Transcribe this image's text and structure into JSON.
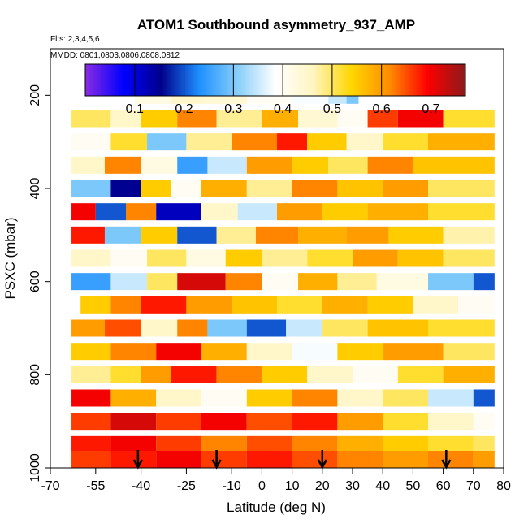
{
  "chart_data": {
    "type": "heatmap",
    "title": "ATOM1 Southbound asymmetry_937_AMP",
    "subtitle_flights": "Flts: 2,3,4,5,6",
    "subtitle_dates": "MMDD: 0801,0803,0806,0808,0812",
    "xlabel": "Latitude (deg N)",
    "ylabel": "PSXC (mbar)",
    "xlim": [
      -70,
      80
    ],
    "ylim": [
      1000,
      100
    ],
    "x_ticks": [
      -70,
      -55,
      -40,
      -25,
      -10,
      0,
      10,
      20,
      30,
      40,
      50,
      60,
      70,
      80
    ],
    "x_tick_labels": [
      "-70",
      "-55",
      "-40",
      "-25",
      "-10",
      "0",
      "10",
      "20",
      "30",
      "40",
      "50",
      "60",
      "70",
      "80"
    ],
    "y_ticks": [
      200,
      400,
      600,
      800,
      1000
    ],
    "y_tick_labels": [
      "200",
      "400",
      "600",
      "800",
      "1000"
    ],
    "colorbar": {
      "range": [
        0.0,
        0.77
      ],
      "ticks": [
        0.1,
        0.2,
        0.3,
        0.4,
        0.5,
        0.6,
        0.7
      ],
      "tick_labels": [
        "0.1",
        "0.2",
        "0.3",
        "0.4",
        "0.5",
        "0.6",
        "0.7"
      ],
      "colors": [
        "#8a2be2",
        "#0000ff",
        "#00008b",
        "#1e90ff",
        "#87cefa",
        "#ffffff",
        "#fff5c0",
        "#ffd700",
        "#ff8c00",
        "#ff0000",
        "#8b1a1a"
      ]
    },
    "markers": {
      "type": "arrow",
      "latitudes": [
        -41,
        -15,
        20,
        61
      ]
    },
    "layers": [
      {
        "p": 200,
        "lat_min": -42,
        "lat_max": 32,
        "cells": [
          {
            "a": -42,
            "b": -30,
            "v": 0.42
          },
          {
            "a": -30,
            "b": -20,
            "v": 0.45
          },
          {
            "a": -20,
            "b": -5,
            "v": 0.44
          },
          {
            "a": -5,
            "b": 10,
            "v": 0.4
          },
          {
            "a": 10,
            "b": 22,
            "v": 0.38
          },
          {
            "a": 22,
            "b": 28,
            "v": 0.35
          },
          {
            "a": 28,
            "b": 32,
            "v": 0.3
          }
        ]
      },
      {
        "p": 250,
        "lat_min": -63,
        "lat_max": 77,
        "cells": [
          {
            "a": -63,
            "b": -50,
            "v": 0.5
          },
          {
            "a": -50,
            "b": -40,
            "v": 0.45
          },
          {
            "a": -40,
            "b": -28,
            "v": 0.55
          },
          {
            "a": -28,
            "b": -15,
            "v": 0.62
          },
          {
            "a": -15,
            "b": 0,
            "v": 0.48
          },
          {
            "a": 0,
            "b": 12,
            "v": 0.58
          },
          {
            "a": 12,
            "b": 25,
            "v": 0.44
          },
          {
            "a": 25,
            "b": 35,
            "v": 0.4
          },
          {
            "a": 35,
            "b": 45,
            "v": 0.66
          },
          {
            "a": 45,
            "b": 60,
            "v": 0.7
          },
          {
            "a": 60,
            "b": 77,
            "v": 0.52
          }
        ]
      },
      {
        "p": 300,
        "lat_min": -63,
        "lat_max": 77,
        "cells": [
          {
            "a": -63,
            "b": -50,
            "v": 0.4
          },
          {
            "a": -50,
            "b": -38,
            "v": 0.52
          },
          {
            "a": -38,
            "b": -25,
            "v": 0.3
          },
          {
            "a": -25,
            "b": -10,
            "v": 0.48
          },
          {
            "a": -10,
            "b": 5,
            "v": 0.62
          },
          {
            "a": 5,
            "b": 15,
            "v": 0.68
          },
          {
            "a": 15,
            "b": 28,
            "v": 0.55
          },
          {
            "a": 28,
            "b": 40,
            "v": 0.45
          },
          {
            "a": 40,
            "b": 55,
            "v": 0.52
          },
          {
            "a": 55,
            "b": 77,
            "v": 0.58
          }
        ]
      },
      {
        "p": 350,
        "lat_min": -63,
        "lat_max": 77,
        "cells": [
          {
            "a": -63,
            "b": -52,
            "v": 0.45
          },
          {
            "a": -52,
            "b": -40,
            "v": 0.62
          },
          {
            "a": -40,
            "b": -28,
            "v": 0.42
          },
          {
            "a": -28,
            "b": -18,
            "v": 0.25
          },
          {
            "a": -18,
            "b": -5,
            "v": 0.35
          },
          {
            "a": -5,
            "b": 10,
            "v": 0.6
          },
          {
            "a": 10,
            "b": 22,
            "v": 0.55
          },
          {
            "a": 22,
            "b": 35,
            "v": 0.5
          },
          {
            "a": 35,
            "b": 50,
            "v": 0.62
          },
          {
            "a": 50,
            "b": 77,
            "v": 0.56
          }
        ]
      },
      {
        "p": 400,
        "lat_min": -63,
        "lat_max": 77,
        "cells": [
          {
            "a": -63,
            "b": -50,
            "v": 0.3
          },
          {
            "a": -50,
            "b": -40,
            "v": 0.15
          },
          {
            "a": -40,
            "b": -30,
            "v": 0.55
          },
          {
            "a": -30,
            "b": -20,
            "v": 0.4
          },
          {
            "a": -20,
            "b": -5,
            "v": 0.58
          },
          {
            "a": -5,
            "b": 10,
            "v": 0.48
          },
          {
            "a": 10,
            "b": 25,
            "v": 0.62
          },
          {
            "a": 25,
            "b": 40,
            "v": 0.56
          },
          {
            "a": 40,
            "b": 55,
            "v": 0.6
          },
          {
            "a": 55,
            "b": 77,
            "v": 0.5
          }
        ]
      },
      {
        "p": 450,
        "lat_min": -63,
        "lat_max": 77,
        "cells": [
          {
            "a": -63,
            "b": -55,
            "v": 0.7
          },
          {
            "a": -55,
            "b": -45,
            "v": 0.2
          },
          {
            "a": -45,
            "b": -35,
            "v": 0.62
          },
          {
            "a": -35,
            "b": -20,
            "v": 0.12
          },
          {
            "a": -20,
            "b": -8,
            "v": 0.45
          },
          {
            "a": -8,
            "b": 5,
            "v": 0.35
          },
          {
            "a": 5,
            "b": 20,
            "v": 0.6
          },
          {
            "a": 20,
            "b": 35,
            "v": 0.55
          },
          {
            "a": 35,
            "b": 55,
            "v": 0.58
          },
          {
            "a": 55,
            "b": 77,
            "v": 0.52
          }
        ]
      },
      {
        "p": 500,
        "lat_min": -63,
        "lat_max": 77,
        "cells": [
          {
            "a": -63,
            "b": -52,
            "v": 0.68
          },
          {
            "a": -52,
            "b": -40,
            "v": 0.3
          },
          {
            "a": -40,
            "b": -28,
            "v": 0.55
          },
          {
            "a": -28,
            "b": -15,
            "v": 0.2
          },
          {
            "a": -15,
            "b": -2,
            "v": 0.48
          },
          {
            "a": -2,
            "b": 12,
            "v": 0.62
          },
          {
            "a": 12,
            "b": 28,
            "v": 0.58
          },
          {
            "a": 28,
            "b": 42,
            "v": 0.6
          },
          {
            "a": 42,
            "b": 60,
            "v": 0.55
          },
          {
            "a": 60,
            "b": 77,
            "v": 0.47
          }
        ]
      },
      {
        "p": 550,
        "lat_min": -63,
        "lat_max": 77,
        "cells": [
          {
            "a": -63,
            "b": -50,
            "v": 0.45
          },
          {
            "a": -50,
            "b": -38,
            "v": 0.4
          },
          {
            "a": -38,
            "b": -25,
            "v": 0.5
          },
          {
            "a": -25,
            "b": -12,
            "v": 0.42
          },
          {
            "a": -12,
            "b": 0,
            "v": 0.55
          },
          {
            "a": 0,
            "b": 15,
            "v": 0.48
          },
          {
            "a": 15,
            "b": 30,
            "v": 0.52
          },
          {
            "a": 30,
            "b": 45,
            "v": 0.6
          },
          {
            "a": 45,
            "b": 60,
            "v": 0.56
          },
          {
            "a": 60,
            "b": 77,
            "v": 0.5
          }
        ]
      },
      {
        "p": 600,
        "lat_min": -63,
        "lat_max": 77,
        "cells": [
          {
            "a": -63,
            "b": -50,
            "v": 0.25
          },
          {
            "a": -50,
            "b": -38,
            "v": 0.35
          },
          {
            "a": -38,
            "b": -28,
            "v": 0.5
          },
          {
            "a": -28,
            "b": -12,
            "v": 0.72
          },
          {
            "a": -12,
            "b": 0,
            "v": 0.62
          },
          {
            "a": 0,
            "b": 12,
            "v": 0.4
          },
          {
            "a": 12,
            "b": 25,
            "v": 0.58
          },
          {
            "a": 25,
            "b": 38,
            "v": 0.48
          },
          {
            "a": 38,
            "b": 55,
            "v": 0.42
          },
          {
            "a": 55,
            "b": 70,
            "v": 0.3
          },
          {
            "a": 70,
            "b": 77,
            "v": 0.2
          }
        ]
      },
      {
        "p": 650,
        "lat_min": -60,
        "lat_max": 77,
        "cells": [
          {
            "a": -60,
            "b": -50,
            "v": 0.55
          },
          {
            "a": -50,
            "b": -40,
            "v": 0.62
          },
          {
            "a": -40,
            "b": -25,
            "v": 0.68
          },
          {
            "a": -25,
            "b": -10,
            "v": 0.6
          },
          {
            "a": -10,
            "b": 5,
            "v": 0.56
          },
          {
            "a": 5,
            "b": 20,
            "v": 0.52
          },
          {
            "a": 20,
            "b": 35,
            "v": 0.58
          },
          {
            "a": 35,
            "b": 50,
            "v": 0.55
          },
          {
            "a": 50,
            "b": 65,
            "v": 0.45
          },
          {
            "a": 65,
            "b": 77,
            "v": 0.4
          }
        ]
      },
      {
        "p": 700,
        "lat_min": -63,
        "lat_max": 77,
        "cells": [
          {
            "a": -63,
            "b": -52,
            "v": 0.6
          },
          {
            "a": -52,
            "b": -40,
            "v": 0.65
          },
          {
            "a": -40,
            "b": -28,
            "v": 0.45
          },
          {
            "a": -28,
            "b": -18,
            "v": 0.62
          },
          {
            "a": -18,
            "b": -5,
            "v": 0.3
          },
          {
            "a": -5,
            "b": 8,
            "v": 0.2
          },
          {
            "a": 8,
            "b": 20,
            "v": 0.35
          },
          {
            "a": 20,
            "b": 35,
            "v": 0.5
          },
          {
            "a": 35,
            "b": 55,
            "v": 0.56
          },
          {
            "a": 55,
            "b": 77,
            "v": 0.52
          }
        ]
      },
      {
        "p": 750,
        "lat_min": -63,
        "lat_max": 77,
        "cells": [
          {
            "a": -63,
            "b": -50,
            "v": 0.55
          },
          {
            "a": -50,
            "b": -35,
            "v": 0.62
          },
          {
            "a": -35,
            "b": -20,
            "v": 0.7
          },
          {
            "a": -20,
            "b": -5,
            "v": 0.58
          },
          {
            "a": -5,
            "b": 10,
            "v": 0.45
          },
          {
            "a": 10,
            "b": 25,
            "v": 0.38
          },
          {
            "a": 25,
            "b": 40,
            "v": 0.55
          },
          {
            "a": 40,
            "b": 60,
            "v": 0.6
          },
          {
            "a": 60,
            "b": 77,
            "v": 0.5
          }
        ]
      },
      {
        "p": 800,
        "lat_min": -63,
        "lat_max": 77,
        "cells": [
          {
            "a": -63,
            "b": -50,
            "v": 0.48
          },
          {
            "a": -50,
            "b": -40,
            "v": 0.52
          },
          {
            "a": -40,
            "b": -30,
            "v": 0.6
          },
          {
            "a": -30,
            "b": -15,
            "v": 0.68
          },
          {
            "a": -15,
            "b": 0,
            "v": 0.62
          },
          {
            "a": 0,
            "b": 15,
            "v": 0.55
          },
          {
            "a": 15,
            "b": 30,
            "v": 0.45
          },
          {
            "a": 30,
            "b": 45,
            "v": 0.4
          },
          {
            "a": 45,
            "b": 60,
            "v": 0.52
          },
          {
            "a": 60,
            "b": 77,
            "v": 0.58
          }
        ]
      },
      {
        "p": 850,
        "lat_min": -63,
        "lat_max": 77,
        "cells": [
          {
            "a": -63,
            "b": -50,
            "v": 0.7
          },
          {
            "a": -50,
            "b": -35,
            "v": 0.58
          },
          {
            "a": -35,
            "b": -20,
            "v": 0.45
          },
          {
            "a": -20,
            "b": -5,
            "v": 0.4
          },
          {
            "a": -5,
            "b": 10,
            "v": 0.55
          },
          {
            "a": 10,
            "b": 25,
            "v": 0.62
          },
          {
            "a": 25,
            "b": 40,
            "v": 0.45
          },
          {
            "a": 40,
            "b": 55,
            "v": 0.5
          },
          {
            "a": 55,
            "b": 70,
            "v": 0.35
          },
          {
            "a": 70,
            "b": 77,
            "v": 0.2
          }
        ]
      },
      {
        "p": 900,
        "lat_min": -63,
        "lat_max": 77,
        "cells": [
          {
            "a": -63,
            "b": -50,
            "v": 0.66
          },
          {
            "a": -50,
            "b": -35,
            "v": 0.72
          },
          {
            "a": -35,
            "b": -20,
            "v": 0.66
          },
          {
            "a": -20,
            "b": -5,
            "v": 0.7
          },
          {
            "a": -5,
            "b": 10,
            "v": 0.65
          },
          {
            "a": 10,
            "b": 25,
            "v": 0.68
          },
          {
            "a": 25,
            "b": 40,
            "v": 0.6
          },
          {
            "a": 40,
            "b": 55,
            "v": 0.52
          },
          {
            "a": 55,
            "b": 70,
            "v": 0.45
          },
          {
            "a": 70,
            "b": 77,
            "v": 0.4
          }
        ]
      },
      {
        "p": 950,
        "lat_min": -63,
        "lat_max": 77,
        "cells": [
          {
            "a": -63,
            "b": -50,
            "v": 0.68
          },
          {
            "a": -50,
            "b": -35,
            "v": 0.7
          },
          {
            "a": -35,
            "b": -20,
            "v": 0.66
          },
          {
            "a": -20,
            "b": -5,
            "v": 0.62
          },
          {
            "a": -5,
            "b": 10,
            "v": 0.65
          },
          {
            "a": 10,
            "b": 25,
            "v": 0.62
          },
          {
            "a": 25,
            "b": 40,
            "v": 0.58
          },
          {
            "a": 40,
            "b": 55,
            "v": 0.55
          },
          {
            "a": 55,
            "b": 70,
            "v": 0.52
          },
          {
            "a": 70,
            "b": 77,
            "v": 0.5
          }
        ]
      },
      {
        "p": 1000,
        "lat_min": -63,
        "lat_max": 77,
        "cells": [
          {
            "a": -63,
            "b": -50,
            "v": 0.66
          },
          {
            "a": -50,
            "b": -35,
            "v": 0.68
          },
          {
            "a": -35,
            "b": -20,
            "v": 0.7
          },
          {
            "a": -20,
            "b": -5,
            "v": 0.66
          },
          {
            "a": -5,
            "b": 10,
            "v": 0.68
          },
          {
            "a": 10,
            "b": 25,
            "v": 0.65
          },
          {
            "a": 25,
            "b": 40,
            "v": 0.62
          },
          {
            "a": 40,
            "b": 55,
            "v": 0.6
          },
          {
            "a": 55,
            "b": 70,
            "v": 0.62
          },
          {
            "a": 70,
            "b": 77,
            "v": 0.6
          }
        ]
      }
    ]
  }
}
